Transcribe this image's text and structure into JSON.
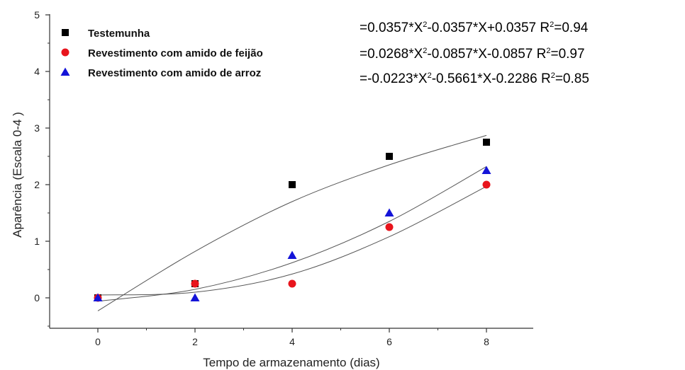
{
  "chart_data": {
    "type": "scatter",
    "xlabel": "Tempo de armazenamento (dias)",
    "ylabel": "Aparência (Escala 0-4 )",
    "xlim": [
      -1,
      9.5
    ],
    "ylim": [
      -0.5,
      5
    ],
    "xticks": [
      0,
      2,
      4,
      6,
      8
    ],
    "yticks": [
      0,
      1,
      2,
      3,
      4,
      5
    ],
    "legend_position": "top-left",
    "series": [
      {
        "name": "Testemunha",
        "marker": "square",
        "color": "#000000",
        "x": [
          0,
          2,
          4,
          6,
          8
        ],
        "y": [
          0,
          0.25,
          2.0,
          2.5,
          2.75
        ]
      },
      {
        "name": "Revestimento com amido de feijão",
        "marker": "circle",
        "color": "#e8141c",
        "x": [
          0,
          2,
          4,
          6,
          8
        ],
        "y": [
          0,
          0.25,
          0.25,
          1.25,
          2.0
        ]
      },
      {
        "name": "Revestimento com amido de arroz",
        "marker": "triangle",
        "color": "#1414d8",
        "x": [
          0,
          2,
          4,
          6,
          8
        ],
        "y": [
          0,
          0,
          0.75,
          1.5,
          2.25
        ]
      }
    ],
    "fits": [
      {
        "curve": [
          [
            0,
            -0.23
          ],
          [
            2,
            0.82
          ],
          [
            4,
            1.7
          ],
          [
            6,
            2.35
          ],
          [
            8,
            2.87
          ]
        ]
      },
      {
        "curve": [
          [
            0,
            -0.06
          ],
          [
            2,
            0.15
          ],
          [
            4,
            0.62
          ],
          [
            6,
            1.35
          ],
          [
            8,
            2.32
          ]
        ]
      },
      {
        "curve": [
          [
            0,
            0.05
          ],
          [
            2,
            0.1
          ],
          [
            4,
            0.42
          ],
          [
            6,
            1.08
          ],
          [
            8,
            1.97
          ]
        ]
      }
    ],
    "equations": [
      {
        "a": "=0.0357*X",
        "b": "-0.0357*X+0.0357 R",
        "c": "=0.94"
      },
      {
        "a": "=0.0268*X",
        "b": "-0.0857*X-0.0857 R",
        "c": "=0.97"
      },
      {
        "a": "=-0.0223*X",
        "b": "-0.5661*X-0.2286 R",
        "c": "=0.85"
      }
    ],
    "sup": "2"
  }
}
